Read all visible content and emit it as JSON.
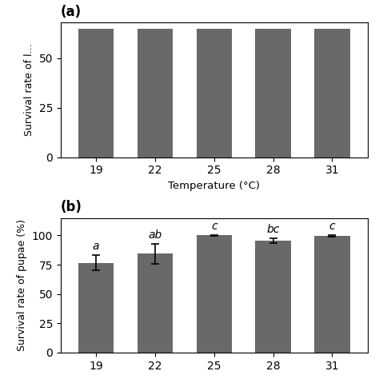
{
  "chart_data": [
    {
      "type": "bar",
      "title": "(a)",
      "categories": [
        "19",
        "22",
        "25",
        "28",
        "31"
      ],
      "values": [
        65,
        65,
        65,
        65,
        65
      ],
      "color": "#696969",
      "ylim": [
        0,
        68
      ],
      "yticks": [
        0,
        25,
        50
      ],
      "x_label": "Temperature (°C)",
      "y_label": "Survival rate of l..."
    },
    {
      "type": "bar",
      "title": "(b)",
      "categories": [
        "19",
        "22",
        "25",
        "28",
        "31"
      ],
      "values": [
        76.5,
        84.5,
        100.0,
        95.5,
        99.5
      ],
      "errors": [
        6.5,
        8.5,
        0.5,
        2.0,
        0.8
      ],
      "annotations": [
        "a",
        "ab",
        "c",
        "bc",
        "c"
      ],
      "color": "#696969",
      "ylim": [
        0,
        115
      ],
      "yticks": [
        0,
        25,
        50,
        75,
        100
      ],
      "y_label": "Survival rate of pupae (%)"
    }
  ]
}
